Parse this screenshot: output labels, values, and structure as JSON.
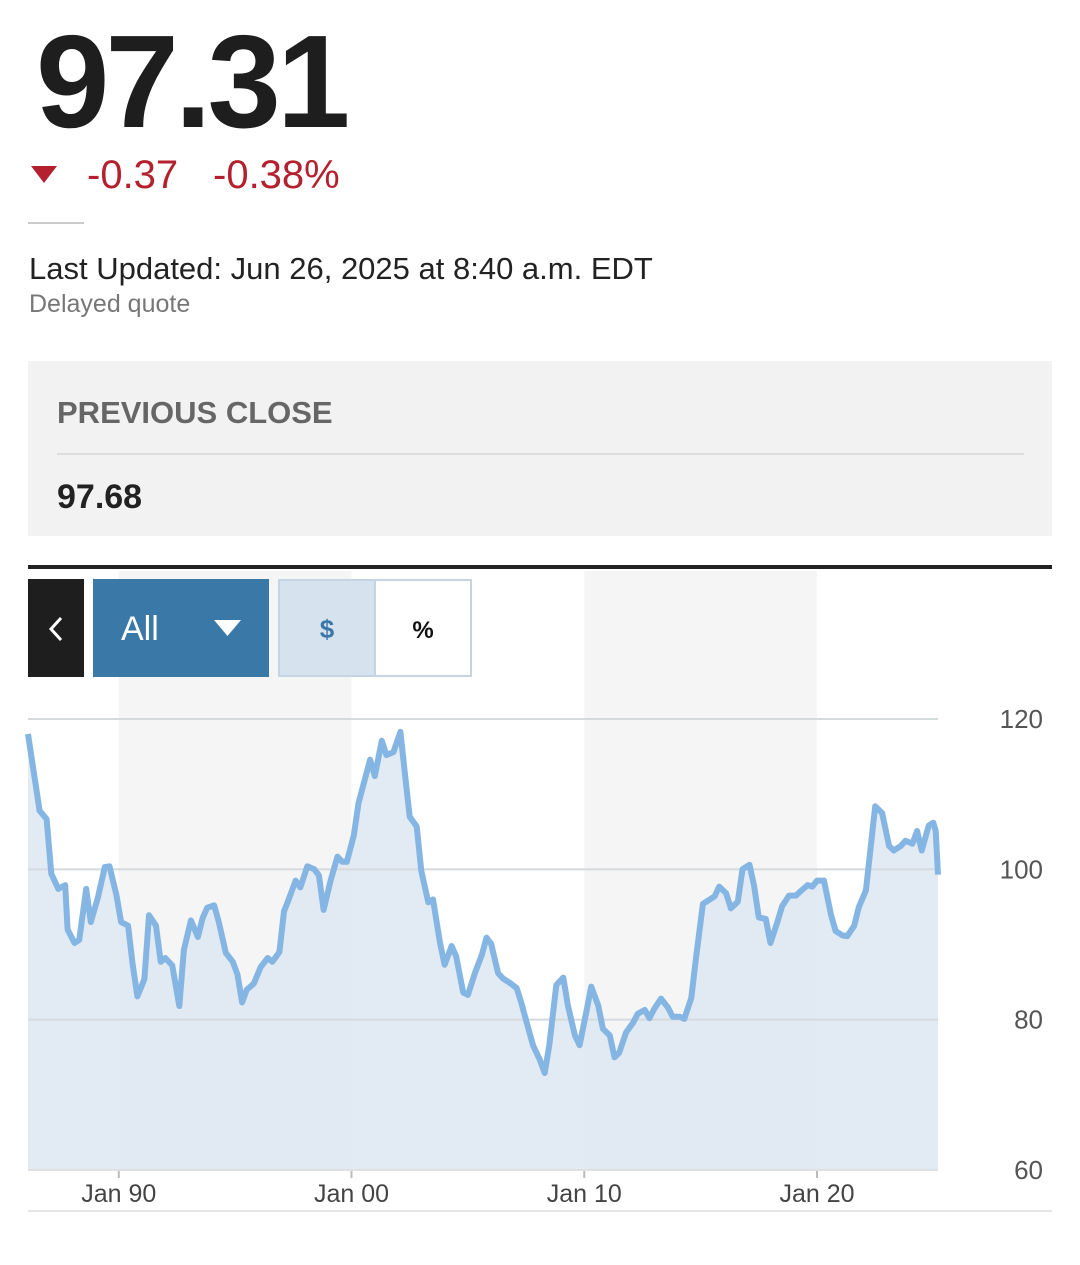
{
  "quote": {
    "price": "97.31",
    "change": "-0.37",
    "change_percent": "-0.38%"
  },
  "last_updated": "Last Updated: Jun 26, 2025 at 8:40 a.m. EDT",
  "delay_note": "Delayed quote",
  "previous_close": {
    "label": "PREVIOUS CLOSE",
    "value": "97.68"
  },
  "controls": {
    "range": "All",
    "dollar": "$",
    "percent": "%"
  },
  "chart_data": {
    "type": "area",
    "color": "#85b6e3",
    "fill": "#dde8f1",
    "grid": true,
    "y_axis_side": "right",
    "xlim": [
      1986.1,
      2025.2
    ],
    "xticks": [
      {
        "value": 1990,
        "label": "Jan 90"
      },
      {
        "value": 2000,
        "label": "Jan 00"
      },
      {
        "value": 2010,
        "label": "Jan 10"
      },
      {
        "value": 2020,
        "label": "Jan 20"
      }
    ],
    "ylim": [
      60,
      120
    ],
    "yticks": [
      60,
      80,
      100,
      120
    ],
    "x": [
      1986.1,
      1986.6,
      1986.9,
      1987.1,
      1987.4,
      1987.7,
      1987.8,
      1988.1,
      1988.3,
      1988.6,
      1988.8,
      1989.1,
      1989.4,
      1989.6,
      1989.9,
      1990.1,
      1990.4,
      1990.6,
      1990.8,
      1991.1,
      1991.3,
      1991.6,
      1991.8,
      1992.0,
      1992.3,
      1992.6,
      1992.8,
      1993.1,
      1993.4,
      1993.6,
      1993.8,
      1994.1,
      1994.3,
      1994.6,
      1994.9,
      1995.1,
      1995.3,
      1995.5,
      1995.8,
      1996.1,
      1996.4,
      1996.6,
      1996.9,
      1997.1,
      1997.3,
      1997.6,
      1997.8,
      1998.1,
      1998.4,
      1998.6,
      1998.8,
      1999.1,
      1999.4,
      1999.6,
      1999.8,
      2000.1,
      2000.3,
      2000.8,
      2001.0,
      2001.3,
      2001.5,
      2001.8,
      2002.1,
      2002.3,
      2002.5,
      2002.8,
      2003.0,
      2003.3,
      2003.5,
      2003.8,
      2004.0,
      2004.3,
      2004.5,
      2004.8,
      2005.0,
      2005.3,
      2005.6,
      2005.8,
      2006.0,
      2006.3,
      2006.5,
      2006.8,
      2007.1,
      2007.3,
      2007.5,
      2007.8,
      2008.1,
      2008.3,
      2008.5,
      2008.8,
      2009.1,
      2009.3,
      2009.6,
      2009.8,
      2010.1,
      2010.3,
      2010.6,
      2010.8,
      2011.1,
      2011.3,
      2011.5,
      2011.8,
      2012.1,
      2012.3,
      2012.6,
      2012.8,
      2013.0,
      2013.3,
      2013.6,
      2013.8,
      2014.1,
      2014.3,
      2014.6,
      2014.8,
      2015.1,
      2015.3,
      2015.6,
      2015.8,
      2016.1,
      2016.3,
      2016.6,
      2016.8,
      2017.1,
      2017.3,
      2017.5,
      2017.8,
      2018.0,
      2018.3,
      2018.5,
      2018.8,
      2019.1,
      2019.3,
      2019.6,
      2019.8,
      2020.0,
      2020.3,
      2020.6,
      2020.8,
      2021.1,
      2021.3,
      2021.6,
      2021.8,
      2022.1,
      2022.3,
      2022.5,
      2022.8,
      2023.1,
      2023.3,
      2023.6,
      2023.8,
      2024.1,
      2024.3,
      2024.5,
      2024.8,
      2025.0,
      2025.1,
      2025.2
    ],
    "values": [
      118.0,
      107.8,
      106.7,
      99.4,
      97.4,
      97.9,
      92.0,
      90.2,
      90.6,
      97.4,
      93.0,
      96.2,
      100.3,
      100.4,
      96.6,
      93.0,
      92.5,
      87.3,
      83.1,
      85.4,
      93.9,
      92.5,
      87.7,
      88.2,
      87.2,
      81.8,
      89.3,
      93.2,
      91.0,
      93.5,
      94.9,
      95.2,
      93.0,
      88.9,
      87.7,
      86.0,
      82.3,
      84.0,
      84.8,
      87.0,
      88.2,
      87.7,
      89.0,
      94.4,
      96.0,
      98.5,
      97.6,
      100.4,
      100.0,
      99.2,
      94.6,
      98.5,
      101.7,
      101.0,
      101.0,
      104.5,
      108.8,
      114.6,
      112.4,
      117.1,
      115.2,
      115.6,
      118.3,
      112.6,
      107.0,
      105.7,
      99.8,
      95.6,
      96.0,
      90.3,
      87.3,
      89.8,
      88.4,
      83.6,
      83.3,
      86.2,
      88.6,
      90.9,
      90.1,
      86.2,
      85.5,
      84.9,
      84.2,
      82.2,
      79.9,
      76.6,
      74.6,
      72.9,
      76.6,
      84.6,
      85.6,
      81.9,
      77.9,
      76.6,
      81.2,
      84.4,
      81.9,
      78.8,
      77.9,
      75.0,
      75.6,
      78.3,
      79.6,
      80.8,
      81.3,
      80.2,
      81.4,
      82.8,
      81.6,
      80.4,
      80.4,
      80.1,
      82.9,
      88.2,
      95.4,
      95.8,
      96.4,
      97.7,
      96.8,
      94.8,
      95.7,
      100.0,
      100.6,
      97.8,
      93.6,
      93.4,
      90.2,
      93.0,
      95.1,
      96.5,
      96.5,
      97.1,
      97.9,
      97.7,
      98.5,
      98.5,
      94.0,
      91.8,
      91.2,
      91.1,
      92.5,
      95.0,
      97.2,
      102.7,
      108.4,
      107.5,
      103.1,
      102.5,
      103.1,
      103.8,
      103.4,
      105.1,
      102.5,
      105.8,
      106.2,
      105.1,
      99.3
    ]
  }
}
